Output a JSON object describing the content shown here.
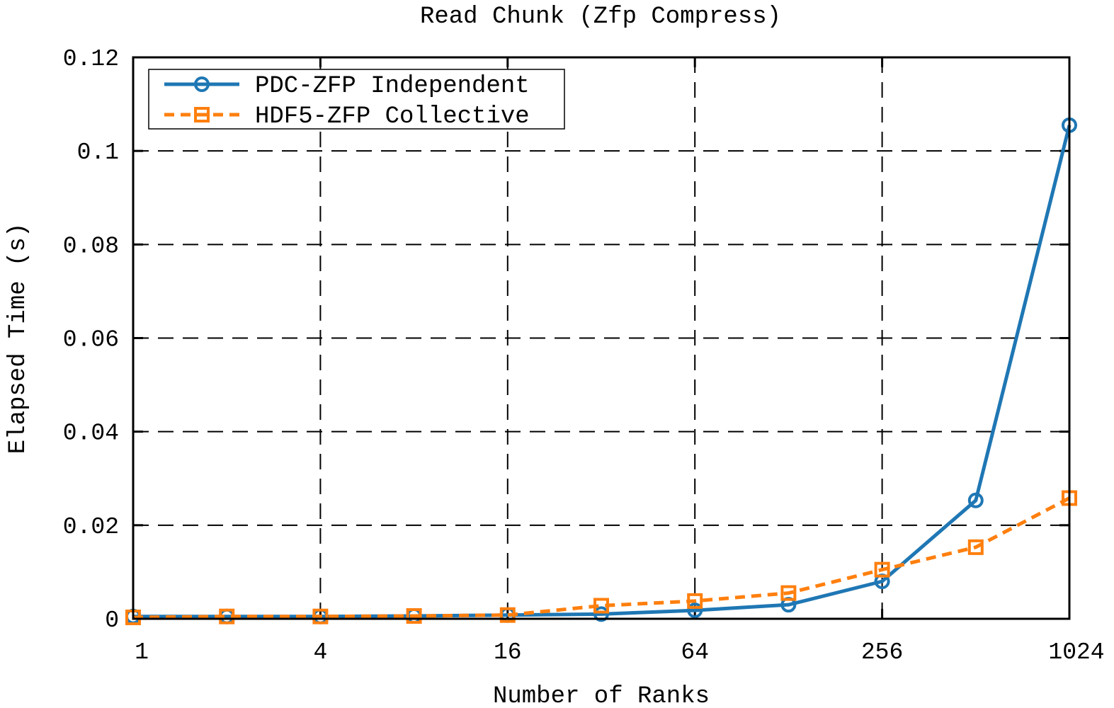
{
  "chart_data": {
    "type": "line",
    "title": "Read Chunk (Zfp Compress)",
    "xlabel": "Number of Ranks",
    "ylabel": "Elapsed Time (s)",
    "x_scale": "log2",
    "xlim": [
      1,
      1024
    ],
    "ylim": [
      0,
      0.12
    ],
    "x_ticks": [
      1,
      4,
      16,
      64,
      256,
      1024
    ],
    "x_tick_labels": [
      "1",
      "4",
      "16",
      "64",
      "256",
      "1024"
    ],
    "y_ticks": [
      0,
      0.02,
      0.04,
      0.06,
      0.08,
      0.1,
      0.12
    ],
    "y_tick_labels": [
      "0",
      "0.02",
      "0.04",
      "0.06",
      "0.08",
      "0.1",
      "0.12"
    ],
    "grid": true,
    "legend_position": "top-left",
    "x": [
      1,
      2,
      4,
      8,
      16,
      32,
      64,
      128,
      256,
      512,
      1024
    ],
    "series": [
      {
        "name": "PDC-ZFP Independent",
        "color": "#1f77b4",
        "line_style": "solid",
        "marker": "circle",
        "values": [
          0.0005,
          0.0005,
          0.0005,
          0.0006,
          0.0008,
          0.001,
          0.0018,
          0.003,
          0.008,
          0.0253,
          0.1055
        ]
      },
      {
        "name": "HDF5-ZFP Collective",
        "color": "#ff7f0e",
        "line_style": "dashed",
        "marker": "square",
        "values": [
          0.0003,
          0.0005,
          0.0005,
          0.0006,
          0.0008,
          0.0028,
          0.0038,
          0.0055,
          0.0105,
          0.0153,
          0.0258
        ]
      }
    ]
  }
}
